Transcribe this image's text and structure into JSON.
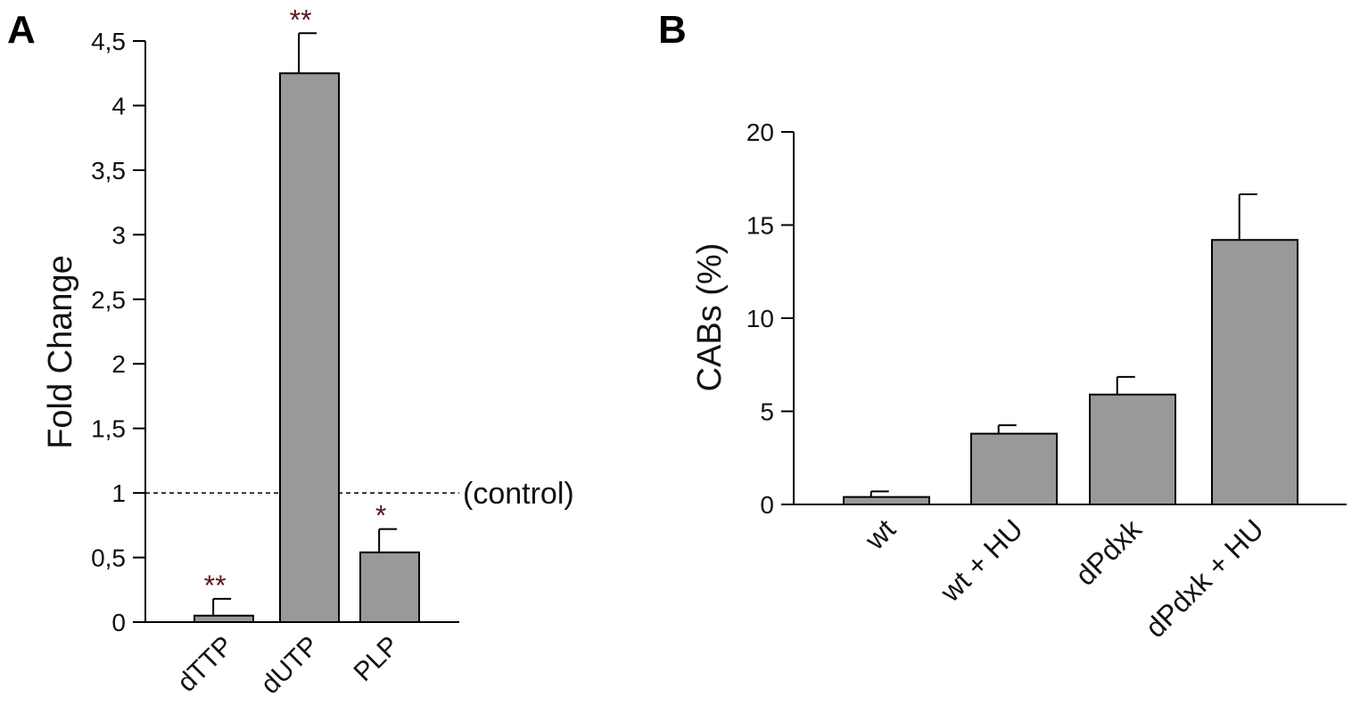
{
  "bar_color": "#999999",
  "annotation_color": "#5a1a1a",
  "chart_data": [
    {
      "panel": "A",
      "type": "bar",
      "categories": [
        "dTTP",
        "dUTP",
        "PLP"
      ],
      "values": [
        0.05,
        4.25,
        0.54
      ],
      "errors": [
        0.13,
        0.31,
        0.18
      ],
      "significance": [
        "**",
        "**",
        "*"
      ],
      "ylabel": "Fold Change",
      "xlabel": "",
      "ylim": [
        0,
        4.5
      ],
      "yticks": [
        0,
        0.5,
        1,
        1.5,
        2,
        2.5,
        3,
        3.5,
        4,
        4.5
      ],
      "ytick_labels": [
        "0",
        "0,5",
        "1",
        "1,5",
        "2",
        "2,5",
        "3",
        "3,5",
        "4",
        "4,5"
      ],
      "reference_line": {
        "value": 1,
        "label": "(control)",
        "style": "dashed"
      },
      "grid": false
    },
    {
      "panel": "B",
      "type": "bar",
      "categories": [
        "wt",
        "wt + HU",
        "dPdxk",
        "dPdxk + HU"
      ],
      "values": [
        0.4,
        3.8,
        5.9,
        14.2
      ],
      "errors": [
        0.3,
        0.45,
        0.95,
        2.45
      ],
      "ylabel": "CABs (%)",
      "xlabel": "",
      "ylim": [
        0,
        20
      ],
      "yticks": [
        0,
        5,
        10,
        15,
        20
      ],
      "ytick_labels": [
        "0",
        "5",
        "10",
        "15",
        "20"
      ],
      "grid": false
    }
  ]
}
